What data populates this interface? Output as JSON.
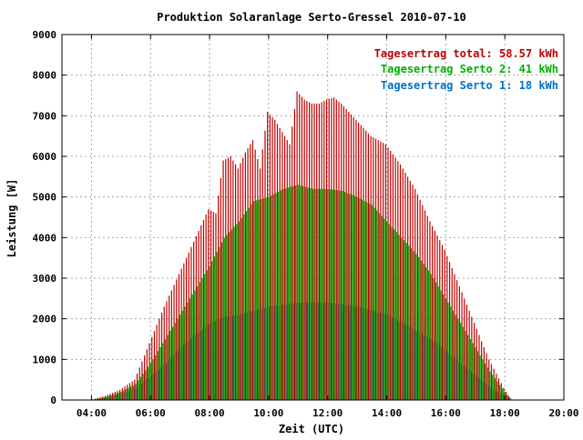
{
  "chart_data": {
    "type": "bar",
    "title": "Produktion Solaranlage Serto-Gressel 2010-07-10",
    "xlabel": "Zeit (UTC)",
    "ylabel": "Leistung [W]",
    "x_unit": "hours (UTC)",
    "xlim": [
      3.0,
      20.0
    ],
    "ylim": [
      0,
      9000
    ],
    "x_ticks": [
      {
        "value": 4,
        "label": "04:00"
      },
      {
        "value": 6,
        "label": "06:00"
      },
      {
        "value": 8,
        "label": "08:00"
      },
      {
        "value": 10,
        "label": "10:00"
      },
      {
        "value": 12,
        "label": "12:00"
      },
      {
        "value": 14,
        "label": "14:00"
      },
      {
        "value": 16,
        "label": "16:00"
      },
      {
        "value": 18,
        "label": "18:00"
      },
      {
        "value": 20,
        "label": "20:00"
      }
    ],
    "y_ticks": [
      0,
      1000,
      2000,
      3000,
      4000,
      5000,
      6000,
      7000,
      8000,
      9000
    ],
    "grid": true,
    "legend_position": "top-right",
    "legend": [
      {
        "label": "Tagesertrag total: 58.57 kWh",
        "color": "#c00000"
      },
      {
        "label": "Tagesertrag Serto 2: 41 kWh",
        "color": "#00b000"
      },
      {
        "label": "Tagesertrag Serto 1: 18 kWh",
        "color": "#0070c8"
      }
    ],
    "series": [
      {
        "key": "total",
        "color": "#c00000",
        "x": [
          4.0,
          4.5,
          5.0,
          5.5,
          6.0,
          6.5,
          7.0,
          7.5,
          8.0,
          8.25,
          8.5,
          8.75,
          9.0,
          9.25,
          9.5,
          9.75,
          10.0,
          10.25,
          10.5,
          10.75,
          11.0,
          11.25,
          11.5,
          11.75,
          12.0,
          12.25,
          12.5,
          12.75,
          13.0,
          13.5,
          14.0,
          14.5,
          15.0,
          15.5,
          16.0,
          16.5,
          17.0,
          17.5,
          18.0,
          18.25
        ],
        "y": [
          0,
          100,
          250,
          500,
          1400,
          2300,
          3100,
          3900,
          4700,
          4600,
          5900,
          6000,
          5700,
          6100,
          6400,
          5700,
          7100,
          6900,
          6600,
          6300,
          7600,
          7400,
          7300,
          7300,
          7400,
          7450,
          7300,
          7100,
          6900,
          6500,
          6300,
          5800,
          5200,
          4400,
          3700,
          2800,
          1900,
          1000,
          300,
          0
        ]
      },
      {
        "key": "serto2",
        "color": "#00b000",
        "x": [
          4.0,
          4.5,
          5.0,
          5.5,
          6.0,
          6.5,
          7.0,
          7.5,
          8.0,
          8.5,
          9.0,
          9.5,
          10.0,
          10.5,
          11.0,
          11.5,
          12.0,
          12.5,
          13.0,
          13.5,
          14.0,
          14.5,
          15.0,
          15.5,
          16.0,
          16.5,
          17.0,
          17.5,
          18.0,
          18.25
        ],
        "y": [
          0,
          80,
          200,
          400,
          900,
          1500,
          2100,
          2700,
          3300,
          4000,
          4400,
          4900,
          5000,
          5200,
          5300,
          5200,
          5200,
          5150,
          5000,
          4800,
          4400,
          4000,
          3600,
          3100,
          2500,
          1900,
          1300,
          700,
          200,
          0
        ]
      },
      {
        "key": "serto1",
        "color": "#0070c8",
        "x": [
          4.0,
          4.5,
          5.0,
          5.5,
          6.0,
          6.5,
          7.0,
          7.5,
          8.0,
          8.5,
          9.0,
          9.5,
          10.0,
          10.5,
          11.0,
          11.5,
          12.0,
          12.5,
          13.0,
          13.5,
          14.0,
          14.5,
          15.0,
          15.5,
          16.0,
          16.5,
          17.0,
          17.5,
          18.0,
          18.25
        ],
        "y": [
          0,
          60,
          150,
          300,
          600,
          900,
          1300,
          1600,
          1900,
          2050,
          2100,
          2200,
          2300,
          2350,
          2400,
          2400,
          2400,
          2350,
          2300,
          2200,
          2100,
          1900,
          1700,
          1500,
          1200,
          900,
          600,
          300,
          100,
          0
        ]
      }
    ]
  }
}
